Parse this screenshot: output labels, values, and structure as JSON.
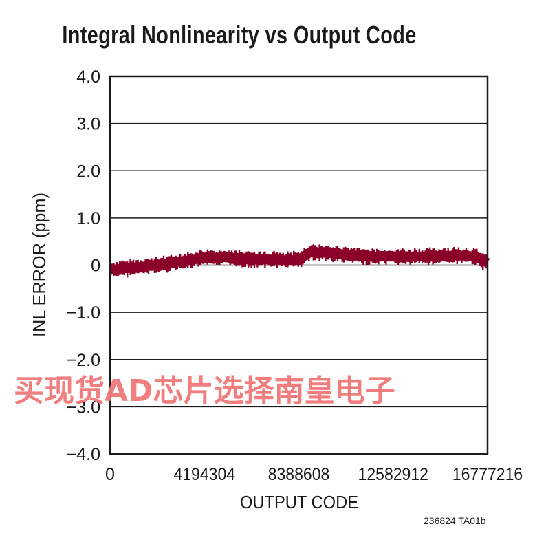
{
  "chart_data": {
    "type": "line",
    "title": "Integral Nonlinearity vs Output Code",
    "xlabel": "OUTPUT CODE",
    "ylabel": "INL ERROR (ppm)",
    "xlim": [
      0,
      16777216
    ],
    "ylim": [
      -4.0,
      4.0
    ],
    "x_ticks": [
      "0",
      "4194304",
      "8388608",
      "12582912",
      "16777216"
    ],
    "y_ticks": [
      "4.0",
      "3.0",
      "2.0",
      "1.0",
      "0",
      "−1.0",
      "−2.0",
      "−3.0",
      "−4.0"
    ],
    "grid": true,
    "series": [
      {
        "color": "#8b0028",
        "x": [
          0,
          1048576,
          2097152,
          3145728,
          4194304,
          5242880,
          6291456,
          7340032,
          7864320,
          8388608,
          8912896,
          9437184,
          10485760,
          11534336,
          12582912,
          13631488,
          14680064,
          15728640,
          16252928,
          16777216
        ],
        "y": [
          -0.1,
          -0.05,
          0.0,
          0.08,
          0.15,
          0.17,
          0.12,
          0.12,
          0.1,
          0.12,
          0.28,
          0.27,
          0.22,
          0.18,
          0.18,
          0.18,
          0.2,
          0.2,
          0.18,
          0.05
        ]
      }
    ]
  },
  "footnote": "236824 TA01b",
  "watermark": "买现货AD芯片选择南皇电子"
}
